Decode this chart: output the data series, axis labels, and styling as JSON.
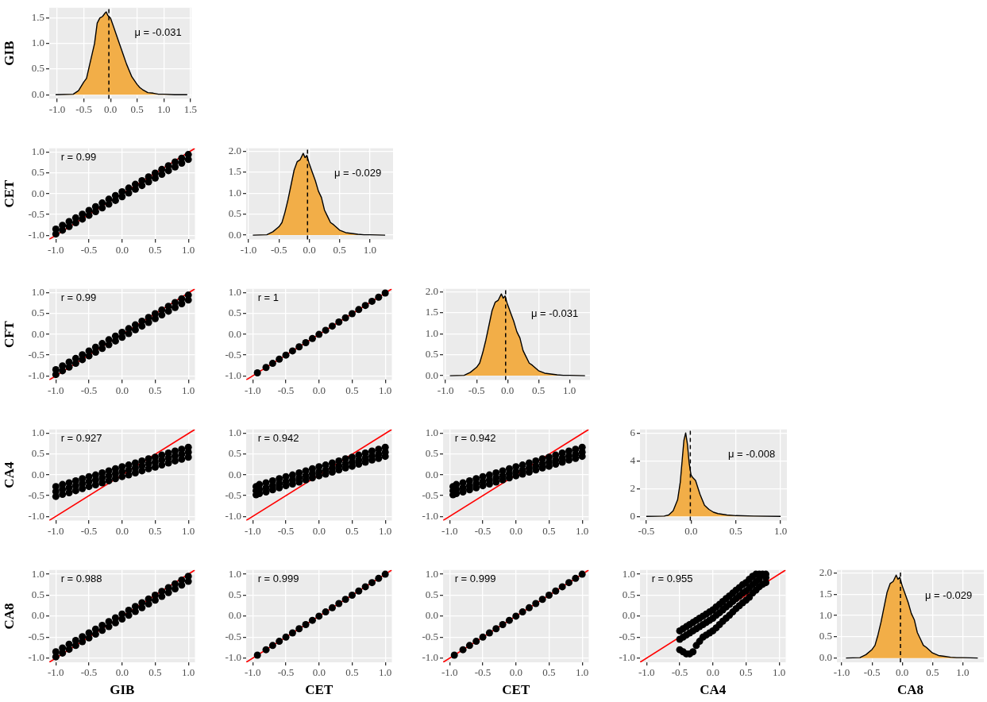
{
  "chart_data": [
    {
      "type": "area",
      "ylabel": "GIB",
      "grid": true,
      "xlim": [
        -1.15,
        1.52
      ],
      "xticks": [
        {
          "value": -1,
          "label": "-1.0"
        },
        -0.5,
        {
          "value": 0,
          "label": "0.0"
        },
        0.5,
        {
          "value": 1,
          "label": "1.0"
        },
        1.5
      ],
      "ylim": [
        -0.08,
        1.7
      ],
      "yticks": [
        {
          "value": 0,
          "label": "0.0"
        },
        0.5,
        {
          "value": 1,
          "label": "1.0"
        },
        1.5
      ],
      "ref_lines": [
        {
          "axis": "x",
          "value": -0.031,
          "line_style": "dashed"
        }
      ],
      "annotations": [
        "μ = -0.031"
      ],
      "series": [
        {
          "color": "#f2ae48",
          "x": [
            -1.03,
            -0.7,
            -0.6,
            -0.5,
            -0.45,
            -0.4,
            -0.3,
            -0.25,
            -0.2,
            -0.15,
            -0.1,
            -0.08,
            -0.05,
            0,
            0.05,
            0.1,
            0.15,
            0.2,
            0.25,
            0.3,
            0.4,
            0.5,
            0.55,
            0.6,
            0.7,
            0.8,
            0.9,
            1.0,
            1.2,
            1.44
          ],
          "values": [
            0,
            0.01,
            0.08,
            0.25,
            0.32,
            0.55,
            1.0,
            1.4,
            1.5,
            1.53,
            1.6,
            1.62,
            1.55,
            1.5,
            1.35,
            1.2,
            1.05,
            0.9,
            0.75,
            0.6,
            0.35,
            0.2,
            0.14,
            0.1,
            0.04,
            0.03,
            0.01,
            0.01,
            0,
            0
          ]
        }
      ]
    },
    {
      "type": "scatter",
      "ylabel": "CET",
      "grid": true,
      "marker": "circle",
      "xlim": [
        -1.1,
        1.1
      ],
      "xticks": [
        {
          "value": -1,
          "label": "-1.0"
        },
        -0.5,
        {
          "value": 0,
          "label": "0.0"
        },
        0.5,
        {
          "value": 1,
          "label": "1.0"
        }
      ],
      "ylim": [
        -1.1,
        1.1
      ],
      "yticks": [
        {
          "value": -1,
          "label": "-1.0"
        },
        -0.5,
        {
          "value": 0,
          "label": "0.0"
        },
        0.5,
        {
          "value": 1,
          "label": "1.0"
        }
      ],
      "annotations": [
        "r = 0.99"
      ],
      "series": [
        {
          "color": "#000000",
          "x": [
            -1,
            -0.9,
            -0.8,
            -0.7,
            -0.6,
            -0.5,
            -0.4,
            -0.3,
            -0.2,
            -0.1,
            0,
            0.1,
            0.2,
            0.3,
            0.4,
            0.5,
            0.6,
            0.7,
            0.8,
            0.9,
            1,
            -1,
            -0.9,
            -0.8,
            -0.7,
            -0.6,
            -0.5,
            -0.4,
            -0.3,
            -0.2,
            -0.1,
            0,
            0.1,
            0.2,
            0.3,
            0.4,
            0.5,
            0.6,
            0.7,
            0.8,
            0.9,
            1
          ],
          "values": [
            -0.85,
            -0.76,
            -0.67,
            -0.58,
            -0.49,
            -0.4,
            -0.31,
            -0.22,
            -0.13,
            -0.04,
            0.05,
            0.14,
            0.23,
            0.32,
            0.41,
            0.5,
            0.59,
            0.68,
            0.77,
            0.86,
            0.95,
            -0.97,
            -0.88,
            -0.79,
            -0.7,
            -0.61,
            -0.52,
            -0.43,
            -0.34,
            -0.25,
            -0.16,
            -0.07,
            0.02,
            0.11,
            0.2,
            0.29,
            0.38,
            0.47,
            0.56,
            0.65,
            0.74,
            0.83
          ]
        },
        {
          "type": "line",
          "color": "#ff0000",
          "marker": "none",
          "x": [
            -1.1,
            1.1
          ],
          "values": [
            -1.1,
            1.1
          ]
        }
      ]
    },
    {
      "type": "area",
      "grid": true,
      "xlim": [
        -1.04,
        1.38
      ],
      "xticks": [
        {
          "value": -1,
          "label": "-1.0"
        },
        -0.5,
        {
          "value": 0,
          "label": "0.0"
        },
        0.5,
        {
          "value": 1,
          "label": "1.0"
        }
      ],
      "ylim": [
        -0.1,
        2.07
      ],
      "yticks": [
        {
          "value": 0,
          "label": "0.0"
        },
        0.5,
        {
          "value": 1,
          "label": "1.0"
        },
        1.5,
        {
          "value": 2,
          "label": "2.0"
        }
      ],
      "ref_lines": [
        {
          "axis": "x",
          "value": -0.029,
          "line_style": "dashed"
        }
      ],
      "annotations": [
        "μ = -0.029"
      ],
      "series": [
        {
          "color": "#f2ae48",
          "x": [
            -0.93,
            -0.7,
            -0.6,
            -0.5,
            -0.45,
            -0.4,
            -0.35,
            -0.3,
            -0.25,
            -0.2,
            -0.15,
            -0.1,
            -0.07,
            -0.04,
            0,
            0.05,
            0.1,
            0.15,
            0.2,
            0.25,
            0.3,
            0.35,
            0.4,
            0.5,
            0.6,
            0.7,
            0.8,
            0.9,
            1.0,
            1.25
          ],
          "values": [
            0,
            0.01,
            0.08,
            0.2,
            0.3,
            0.55,
            0.85,
            1.2,
            1.55,
            1.75,
            1.8,
            1.95,
            1.85,
            1.9,
            1.7,
            1.5,
            1.3,
            1.05,
            0.9,
            0.6,
            0.45,
            0.3,
            0.25,
            0.12,
            0.06,
            0.04,
            0.02,
            0.01,
            0.01,
            0
          ]
        }
      ]
    },
    {
      "type": "scatter",
      "ylabel": "CFT",
      "grid": true,
      "marker": "circle",
      "xlim": [
        -1.1,
        1.1
      ],
      "xticks": [
        {
          "value": -1,
          "label": "-1.0"
        },
        -0.5,
        {
          "value": 0,
          "label": "0.0"
        },
        0.5,
        {
          "value": 1,
          "label": "1.0"
        }
      ],
      "ylim": [
        -1.1,
        1.1
      ],
      "yticks": [
        {
          "value": -1,
          "label": "-1.0"
        },
        -0.5,
        {
          "value": 0,
          "label": "0.0"
        },
        0.5,
        {
          "value": 1,
          "label": "1.0"
        }
      ],
      "annotations": [
        "r = 0.99"
      ],
      "series": [
        {
          "color": "#000000",
          "x": [
            -1,
            -0.9,
            -0.8,
            -0.7,
            -0.6,
            -0.5,
            -0.4,
            -0.3,
            -0.2,
            -0.1,
            0,
            0.1,
            0.2,
            0.3,
            0.4,
            0.5,
            0.6,
            0.7,
            0.8,
            0.9,
            1,
            -1,
            -0.9,
            -0.8,
            -0.7,
            -0.6,
            -0.5,
            -0.4,
            -0.3,
            -0.2,
            -0.1,
            0,
            0.1,
            0.2,
            0.3,
            0.4,
            0.5,
            0.6,
            0.7,
            0.8,
            0.9,
            1
          ],
          "values": [
            -0.85,
            -0.76,
            -0.67,
            -0.58,
            -0.49,
            -0.4,
            -0.31,
            -0.22,
            -0.13,
            -0.04,
            0.05,
            0.14,
            0.23,
            0.32,
            0.41,
            0.5,
            0.59,
            0.68,
            0.77,
            0.86,
            0.95,
            -0.97,
            -0.88,
            -0.79,
            -0.7,
            -0.61,
            -0.52,
            -0.43,
            -0.34,
            -0.25,
            -0.16,
            -0.07,
            0.02,
            0.11,
            0.2,
            0.29,
            0.38,
            0.47,
            0.56,
            0.65,
            0.74,
            0.83
          ]
        },
        {
          "type": "line",
          "color": "#ff0000",
          "marker": "none",
          "x": [
            -1.1,
            1.1
          ],
          "values": [
            -1.1,
            1.1
          ]
        }
      ]
    },
    {
      "type": "scatter",
      "grid": true,
      "marker": "circle",
      "xlim": [
        -1.1,
        1.1
      ],
      "xticks": [
        {
          "value": -1,
          "label": "-1.0"
        },
        -0.5,
        {
          "value": 0,
          "label": "0.0"
        },
        0.5,
        {
          "value": 1,
          "label": "1.0"
        }
      ],
      "ylim": [
        -1.1,
        1.1
      ],
      "yticks": [
        {
          "value": -1,
          "label": "-1.0"
        },
        -0.5,
        {
          "value": 0,
          "label": "0.0"
        },
        0.5,
        {
          "value": 1,
          "label": "1.0"
        }
      ],
      "annotations": [
        "r = 1"
      ],
      "series": [
        {
          "color": "#000000",
          "x": [
            -0.93,
            -0.8,
            -0.7,
            -0.6,
            -0.5,
            -0.4,
            -0.3,
            -0.2,
            -0.1,
            0,
            0.1,
            0.2,
            0.3,
            0.4,
            0.5,
            0.6,
            0.7,
            0.8,
            0.9,
            1
          ],
          "values": [
            -0.93,
            -0.8,
            -0.7,
            -0.6,
            -0.5,
            -0.4,
            -0.3,
            -0.2,
            -0.1,
            0,
            0.1,
            0.2,
            0.3,
            0.4,
            0.5,
            0.6,
            0.7,
            0.8,
            0.9,
            1
          ]
        },
        {
          "type": "line",
          "color": "#ff0000",
          "marker": "none",
          "x": [
            -1.1,
            1.1
          ],
          "values": [
            -1.1,
            1.1
          ]
        }
      ]
    },
    {
      "type": "area",
      "grid": true,
      "xlim": [
        -1.04,
        1.33
      ],
      "xticks": [
        {
          "value": -1,
          "label": "-1.0"
        },
        -0.5,
        {
          "value": 0,
          "label": "0.0"
        },
        0.5,
        {
          "value": 1,
          "label": "1.0"
        }
      ],
      "ylim": [
        -0.1,
        2.07
      ],
      "yticks": [
        {
          "value": 0,
          "label": "0.0"
        },
        0.5,
        {
          "value": 1,
          "label": "1.0"
        },
        1.5,
        {
          "value": 2,
          "label": "2.0"
        }
      ],
      "ref_lines": [
        {
          "axis": "x",
          "value": -0.031,
          "line_style": "dashed"
        }
      ],
      "annotations": [
        "μ = -0.031"
      ],
      "series": [
        {
          "color": "#f2ae48",
          "x": [
            -0.93,
            -0.7,
            -0.6,
            -0.5,
            -0.45,
            -0.4,
            -0.35,
            -0.3,
            -0.25,
            -0.2,
            -0.15,
            -0.1,
            -0.07,
            -0.04,
            0,
            0.05,
            0.1,
            0.15,
            0.2,
            0.25,
            0.3,
            0.35,
            0.4,
            0.5,
            0.6,
            0.7,
            0.8,
            0.9,
            1.0,
            1.25
          ],
          "values": [
            0,
            0.01,
            0.08,
            0.2,
            0.3,
            0.55,
            0.85,
            1.2,
            1.55,
            1.75,
            1.8,
            1.95,
            1.85,
            1.9,
            1.7,
            1.5,
            1.3,
            1.05,
            0.9,
            0.6,
            0.45,
            0.3,
            0.25,
            0.12,
            0.06,
            0.04,
            0.02,
            0.01,
            0.01,
            0
          ]
        }
      ]
    },
    {
      "type": "scatter",
      "ylabel": "CA4",
      "grid": true,
      "marker": "circle",
      "xlim": [
        -1.1,
        1.1
      ],
      "xticks": [
        {
          "value": -1,
          "label": "-1.0"
        },
        -0.5,
        {
          "value": 0,
          "label": "0.0"
        },
        0.5,
        {
          "value": 1,
          "label": "1.0"
        }
      ],
      "ylim": [
        -1.1,
        1.1
      ],
      "yticks": [
        {
          "value": -1,
          "label": "-1.0"
        },
        -0.5,
        {
          "value": 0,
          "label": "0.0"
        },
        0.5,
        {
          "value": 1,
          "label": "1.0"
        }
      ],
      "annotations": [
        "r = 0.927"
      ],
      "series": [
        {
          "color": "#000000",
          "x": [
            -1,
            -0.9,
            -0.8,
            -0.7,
            -0.6,
            -0.5,
            -0.4,
            -0.3,
            -0.2,
            -0.1,
            0,
            0.1,
            0.2,
            0.3,
            0.4,
            0.5,
            0.6,
            0.7,
            0.8,
            0.9,
            1,
            -1,
            -0.9,
            -0.8,
            -0.7,
            -0.6,
            -0.5,
            -0.4,
            -0.3,
            -0.2,
            -0.1,
            0,
            0.1,
            0.2,
            0.3,
            0.4,
            0.5,
            0.6,
            0.7,
            0.8,
            0.9,
            1,
            -1,
            -0.9,
            -0.8,
            -0.7,
            -0.6,
            -0.5,
            -0.4,
            -0.3,
            -0.2,
            -0.1,
            0,
            0.1,
            0.2,
            0.3,
            0.4,
            0.5,
            0.6,
            0.7,
            0.8,
            0.9,
            1
          ],
          "values": [
            -0.4,
            -0.35,
            -0.31,
            -0.26,
            -0.21,
            -0.16,
            -0.12,
            -0.07,
            -0.02,
            0.03,
            0.08,
            0.12,
            0.17,
            0.22,
            0.27,
            0.31,
            0.36,
            0.41,
            0.46,
            0.5,
            0.55,
            -0.28,
            -0.23,
            -0.19,
            -0.14,
            -0.09,
            -0.04,
            0,
            0.05,
            0.1,
            0.15,
            0.2,
            0.24,
            0.29,
            0.34,
            0.39,
            0.43,
            0.48,
            0.53,
            0.58,
            0.62,
            0.67,
            -0.52,
            -0.47,
            -0.43,
            -0.38,
            -0.33,
            -0.28,
            -0.24,
            -0.19,
            -0.14,
            -0.09,
            -0.04,
            0,
            0.05,
            0.1,
            0.15,
            0.19,
            0.24,
            0.29,
            0.34,
            0.38,
            0.43
          ]
        },
        {
          "type": "line",
          "color": "#ff0000",
          "marker": "none",
          "x": [
            -1.1,
            1.1
          ],
          "values": [
            -1.1,
            1.1
          ]
        }
      ]
    },
    {
      "type": "scatter",
      "grid": true,
      "marker": "circle",
      "xlim": [
        -1.1,
        1.1
      ],
      "xticks": [
        {
          "value": -1,
          "label": "-1.0"
        },
        -0.5,
        {
          "value": 0,
          "label": "0.0"
        },
        0.5,
        {
          "value": 1,
          "label": "1.0"
        }
      ],
      "ylim": [
        -1.1,
        1.1
      ],
      "yticks": [
        {
          "value": -1,
          "label": "-1.0"
        },
        -0.5,
        {
          "value": 0,
          "label": "0.0"
        },
        0.5,
        {
          "value": 1,
          "label": "1.0"
        }
      ],
      "annotations": [
        "r = 0.942"
      ],
      "series": [
        {
          "color": "#000000",
          "x": [
            -0.95,
            -0.9,
            -0.8,
            -0.7,
            -0.6,
            -0.5,
            -0.4,
            -0.3,
            -0.2,
            -0.1,
            0,
            0.1,
            0.2,
            0.3,
            0.4,
            0.5,
            0.6,
            0.7,
            0.8,
            0.9,
            1,
            -0.95,
            -0.9,
            -0.8,
            -0.7,
            -0.6,
            -0.5,
            -0.4,
            -0.3,
            -0.2,
            -0.1,
            0,
            0.1,
            0.2,
            0.3,
            0.4,
            0.5,
            0.6,
            0.7,
            0.8,
            0.9,
            1,
            -0.95,
            -0.9,
            -0.8,
            -0.7,
            -0.6,
            -0.5,
            -0.4,
            -0.3,
            -0.2,
            -0.1,
            0,
            0.1,
            0.2,
            0.3,
            0.4,
            0.5,
            0.6,
            0.7,
            0.8,
            0.9,
            1
          ],
          "values": [
            -0.38,
            -0.35,
            -0.31,
            -0.26,
            -0.21,
            -0.16,
            -0.12,
            -0.07,
            -0.02,
            0.03,
            0.08,
            0.12,
            0.17,
            0.22,
            0.27,
            0.31,
            0.36,
            0.41,
            0.46,
            0.5,
            0.55,
            -0.28,
            -0.23,
            -0.19,
            -0.14,
            -0.09,
            -0.04,
            0,
            0.05,
            0.1,
            0.15,
            0.2,
            0.24,
            0.29,
            0.34,
            0.39,
            0.43,
            0.48,
            0.53,
            0.58,
            0.62,
            0.67,
            -0.48,
            -0.45,
            -0.41,
            -0.36,
            -0.31,
            -0.26,
            -0.22,
            -0.17,
            -0.12,
            -0.07,
            -0.02,
            0.02,
            0.07,
            0.12,
            0.17,
            0.21,
            0.26,
            0.31,
            0.36,
            0.4,
            0.45
          ]
        },
        {
          "type": "line",
          "color": "#ff0000",
          "marker": "none",
          "x": [
            -1.1,
            1.1
          ],
          "values": [
            -1.1,
            1.1
          ]
        }
      ]
    },
    {
      "type": "scatter",
      "grid": true,
      "marker": "circle",
      "xlim": [
        -1.1,
        1.1
      ],
      "xticks": [
        {
          "value": -1,
          "label": "-1.0"
        },
        -0.5,
        {
          "value": 0,
          "label": "0.0"
        },
        0.5,
        {
          "value": 1,
          "label": "1.0"
        }
      ],
      "ylim": [
        -1.1,
        1.1
      ],
      "yticks": [
        {
          "value": -1,
          "label": "-1.0"
        },
        -0.5,
        {
          "value": 0,
          "label": "0.0"
        },
        0.5,
        {
          "value": 1,
          "label": "1.0"
        }
      ],
      "annotations": [
        "r = 0.942"
      ],
      "series": [
        {
          "color": "#000000",
          "x": [
            -0.95,
            -0.9,
            -0.8,
            -0.7,
            -0.6,
            -0.5,
            -0.4,
            -0.3,
            -0.2,
            -0.1,
            0,
            0.1,
            0.2,
            0.3,
            0.4,
            0.5,
            0.6,
            0.7,
            0.8,
            0.9,
            1,
            -0.95,
            -0.9,
            -0.8,
            -0.7,
            -0.6,
            -0.5,
            -0.4,
            -0.3,
            -0.2,
            -0.1,
            0,
            0.1,
            0.2,
            0.3,
            0.4,
            0.5,
            0.6,
            0.7,
            0.8,
            0.9,
            1,
            -0.95,
            -0.9,
            -0.8,
            -0.7,
            -0.6,
            -0.5,
            -0.4,
            -0.3,
            -0.2,
            -0.1,
            0,
            0.1,
            0.2,
            0.3,
            0.4,
            0.5,
            0.6,
            0.7,
            0.8,
            0.9,
            1
          ],
          "values": [
            -0.38,
            -0.35,
            -0.31,
            -0.26,
            -0.21,
            -0.16,
            -0.12,
            -0.07,
            -0.02,
            0.03,
            0.08,
            0.12,
            0.17,
            0.22,
            0.27,
            0.31,
            0.36,
            0.41,
            0.46,
            0.5,
            0.55,
            -0.28,
            -0.23,
            -0.19,
            -0.14,
            -0.09,
            -0.04,
            0,
            0.05,
            0.1,
            0.15,
            0.2,
            0.24,
            0.29,
            0.34,
            0.39,
            0.43,
            0.48,
            0.53,
            0.58,
            0.62,
            0.67,
            -0.48,
            -0.45,
            -0.41,
            -0.36,
            -0.31,
            -0.26,
            -0.22,
            -0.17,
            -0.12,
            -0.07,
            -0.02,
            0.02,
            0.07,
            0.12,
            0.17,
            0.21,
            0.26,
            0.31,
            0.36,
            0.4,
            0.45
          ]
        },
        {
          "type": "line",
          "color": "#ff0000",
          "marker": "none",
          "x": [
            -1.1,
            1.1
          ],
          "values": [
            -1.1,
            1.1
          ]
        }
      ]
    },
    {
      "type": "area",
      "grid": true,
      "xlim": [
        -0.57,
        1.07
      ],
      "xticks": [
        -0.5,
        {
          "value": 0,
          "label": "0.0"
        },
        0.5,
        {
          "value": 1,
          "label": "1.0"
        }
      ],
      "ylim": [
        -0.3,
        6.3
      ],
      "yticks": [
        0,
        2,
        4,
        6
      ],
      "ref_lines": [
        {
          "axis": "x",
          "value": -0.008,
          "line_style": "dashed"
        }
      ],
      "annotations": [
        "μ = -0.008"
      ],
      "series": [
        {
          "color": "#f2ae48",
          "x": [
            -0.5,
            -0.3,
            -0.25,
            -0.2,
            -0.15,
            -0.12,
            -0.1,
            -0.08,
            -0.06,
            -0.04,
            -0.02,
            0,
            0.02,
            0.05,
            0.08,
            0.1,
            0.15,
            0.2,
            0.25,
            0.3,
            0.4,
            0.5,
            0.7,
            1.0
          ],
          "values": [
            0,
            0.02,
            0.1,
            0.4,
            1.2,
            2.5,
            4.0,
            5.5,
            6.05,
            5.2,
            3.8,
            3.0,
            2.8,
            2.6,
            2.0,
            1.6,
            0.8,
            0.5,
            0.3,
            0.2,
            0.1,
            0.05,
            0.02,
            0
          ]
        }
      ]
    },
    {
      "type": "scatter",
      "ylabel": "CA8",
      "xlabel": "GIB",
      "grid": true,
      "marker": "circle",
      "xlim": [
        -1.1,
        1.1
      ],
      "xticks": [
        {
          "value": -1,
          "label": "-1.0"
        },
        -0.5,
        {
          "value": 0,
          "label": "0.0"
        },
        0.5,
        {
          "value": 1,
          "label": "1.0"
        }
      ],
      "ylim": [
        -1.1,
        1.1
      ],
      "yticks": [
        {
          "value": -1,
          "label": "-1.0"
        },
        -0.5,
        {
          "value": 0,
          "label": "0.0"
        },
        0.5,
        {
          "value": 1,
          "label": "1.0"
        }
      ],
      "annotations": [
        "r = 0.988"
      ],
      "series": [
        {
          "color": "#000000",
          "x": [
            -1,
            -0.9,
            -0.8,
            -0.7,
            -0.6,
            -0.5,
            -0.4,
            -0.3,
            -0.2,
            -0.1,
            0,
            0.1,
            0.2,
            0.3,
            0.4,
            0.5,
            0.6,
            0.7,
            0.8,
            0.9,
            1,
            -1,
            -0.9,
            -0.8,
            -0.7,
            -0.6,
            -0.5,
            -0.4,
            -0.3,
            -0.2,
            -0.1,
            0,
            0.1,
            0.2,
            0.3,
            0.4,
            0.5,
            0.6,
            0.7,
            0.8,
            0.9,
            1
          ],
          "values": [
            -0.85,
            -0.76,
            -0.67,
            -0.58,
            -0.49,
            -0.4,
            -0.31,
            -0.22,
            -0.13,
            -0.04,
            0.05,
            0.14,
            0.23,
            0.32,
            0.41,
            0.5,
            0.59,
            0.68,
            0.77,
            0.86,
            0.95,
            -0.97,
            -0.88,
            -0.79,
            -0.7,
            -0.61,
            -0.52,
            -0.43,
            -0.34,
            -0.25,
            -0.16,
            -0.07,
            0.02,
            0.11,
            0.2,
            0.29,
            0.38,
            0.47,
            0.56,
            0.65,
            0.74,
            0.83
          ]
        },
        {
          "type": "line",
          "color": "#ff0000",
          "marker": "none",
          "x": [
            -1.1,
            1.1
          ],
          "values": [
            -1.1,
            1.1
          ]
        }
      ]
    },
    {
      "type": "scatter",
      "xlabel": "CET",
      "grid": true,
      "marker": "circle",
      "xlim": [
        -1.1,
        1.1
      ],
      "xticks": [
        {
          "value": -1,
          "label": "-1.0"
        },
        -0.5,
        {
          "value": 0,
          "label": "0.0"
        },
        0.5,
        {
          "value": 1,
          "label": "1.0"
        }
      ],
      "ylim": [
        -1.1,
        1.1
      ],
      "yticks": [
        {
          "value": -1,
          "label": "-1.0"
        },
        -0.5,
        {
          "value": 0,
          "label": "0.0"
        },
        0.5,
        {
          "value": 1,
          "label": "1.0"
        }
      ],
      "annotations": [
        "r = 0.999"
      ],
      "series": [
        {
          "color": "#000000",
          "x": [
            -0.93,
            -0.8,
            -0.7,
            -0.6,
            -0.5,
            -0.4,
            -0.3,
            -0.2,
            -0.1,
            0,
            0.1,
            0.2,
            0.3,
            0.4,
            0.5,
            0.6,
            0.7,
            0.8,
            0.9,
            1
          ],
          "values": [
            -0.93,
            -0.8,
            -0.7,
            -0.6,
            -0.5,
            -0.4,
            -0.3,
            -0.2,
            -0.1,
            0,
            0.1,
            0.2,
            0.3,
            0.4,
            0.5,
            0.6,
            0.7,
            0.8,
            0.9,
            1
          ]
        },
        {
          "type": "line",
          "color": "#ff0000",
          "marker": "none",
          "x": [
            -1.1,
            1.1
          ],
          "values": [
            -1.1,
            1.1
          ]
        }
      ]
    },
    {
      "type": "scatter",
      "xlabel": "CET",
      "grid": true,
      "marker": "circle",
      "xlim": [
        -1.1,
        1.1
      ],
      "xticks": [
        {
          "value": -1,
          "label": "-1.0"
        },
        -0.5,
        {
          "value": 0,
          "label": "0.0"
        },
        0.5,
        {
          "value": 1,
          "label": "1.0"
        }
      ],
      "ylim": [
        -1.1,
        1.1
      ],
      "yticks": [
        {
          "value": -1,
          "label": "-1.0"
        },
        -0.5,
        {
          "value": 0,
          "label": "0.0"
        },
        0.5,
        {
          "value": 1,
          "label": "1.0"
        }
      ],
      "annotations": [
        "r = 0.999"
      ],
      "series": [
        {
          "color": "#000000",
          "x": [
            -0.93,
            -0.8,
            -0.7,
            -0.6,
            -0.5,
            -0.4,
            -0.3,
            -0.2,
            -0.1,
            0,
            0.1,
            0.2,
            0.3,
            0.4,
            0.5,
            0.6,
            0.7,
            0.8,
            0.9,
            1
          ],
          "values": [
            -0.93,
            -0.8,
            -0.7,
            -0.6,
            -0.5,
            -0.4,
            -0.3,
            -0.2,
            -0.1,
            0,
            0.1,
            0.2,
            0.3,
            0.4,
            0.5,
            0.6,
            0.7,
            0.8,
            0.9,
            1
          ]
        },
        {
          "type": "line",
          "color": "#ff0000",
          "marker": "none",
          "x": [
            -1.1,
            1.1
          ],
          "values": [
            -1.1,
            1.1
          ]
        }
      ]
    },
    {
      "type": "scatter",
      "xlabel": "CA4",
      "grid": true,
      "marker": "circle",
      "xlim": [
        -1.1,
        1.1
      ],
      "xticks": [
        {
          "value": -1,
          "label": "-1.0"
        },
        -0.5,
        {
          "value": 0,
          "label": "0.0"
        },
        0.5,
        {
          "value": 1,
          "label": "1.0"
        }
      ],
      "ylim": [
        -1.1,
        1.1
      ],
      "yticks": [
        {
          "value": -1,
          "label": "-1.0"
        },
        -0.5,
        {
          "value": 0,
          "label": "0.0"
        },
        0.5,
        {
          "value": 1,
          "label": "1.0"
        }
      ],
      "annotations": [
        "r = 0.955"
      ],
      "series": [
        {
          "color": "#000000",
          "x": [
            -0.5,
            -0.45,
            -0.4,
            -0.35,
            -0.3,
            -0.25,
            -0.2,
            -0.15,
            -0.1,
            -0.05,
            0,
            0.05,
            0.1,
            0.15,
            0.2,
            0.25,
            0.3,
            0.35,
            0.4,
            0.45,
            0.5,
            0.55,
            0.6,
            0.65,
            0.7,
            0.8,
            -0.5,
            -0.45,
            -0.4,
            -0.35,
            -0.3,
            -0.25,
            -0.2,
            -0.15,
            -0.1,
            -0.05,
            0,
            0.05,
            0.1,
            0.15,
            0.2,
            0.25,
            0.3,
            0.35,
            0.4,
            0.45,
            0.5,
            0.55,
            0.6,
            0.65,
            0.7,
            0.75,
            0.8,
            -0.5,
            -0.45,
            -0.4,
            -0.35,
            -0.3,
            -0.25,
            -0.2,
            -0.15,
            -0.1,
            -0.05,
            0,
            0.05,
            0.1,
            0.15,
            0.2,
            0.25,
            0.3,
            0.35,
            0.4,
            0.45,
            0.5,
            0.55,
            0.6,
            0.65,
            0.7,
            0.75,
            0.8
          ],
          "values": [
            -0.55,
            -0.5,
            -0.45,
            -0.4,
            -0.35,
            -0.3,
            -0.25,
            -0.2,
            -0.15,
            -0.1,
            -0.05,
            0.02,
            0.08,
            0.15,
            0.22,
            0.28,
            0.35,
            0.42,
            0.48,
            0.55,
            0.6,
            0.68,
            0.75,
            0.82,
            0.88,
            0.92,
            -0.35,
            -0.3,
            -0.25,
            -0.2,
            -0.15,
            -0.1,
            -0.05,
            0,
            0.05,
            0.1,
            0.15,
            0.22,
            0.28,
            0.35,
            0.42,
            0.48,
            0.55,
            0.62,
            0.68,
            0.75,
            0.8,
            0.88,
            0.95,
            1.0,
            1.0,
            1.0,
            1.0,
            -0.8,
            -0.85,
            -0.9,
            -0.9,
            -0.85,
            -0.7,
            -0.6,
            -0.5,
            -0.45,
            -0.4,
            -0.35,
            -0.28,
            -0.2,
            -0.12,
            -0.05,
            0.02,
            0.1,
            0.18,
            0.25,
            0.32,
            0.38,
            0.45,
            0.55,
            0.62,
            0.7,
            0.76,
            0.8
          ]
        },
        {
          "type": "line",
          "color": "#ff0000",
          "marker": "none",
          "x": [
            -1.1,
            1.1
          ],
          "values": [
            -1.1,
            1.1
          ]
        }
      ]
    },
    {
      "type": "area",
      "xlabel": "CA8",
      "grid": true,
      "xlim": [
        -1.08,
        1.35
      ],
      "xticks": [
        {
          "value": -1,
          "label": "-1.0"
        },
        -0.5,
        {
          "value": 0,
          "label": "0.0"
        },
        0.5,
        {
          "value": 1,
          "label": "1.0"
        }
      ],
      "ylim": [
        -0.1,
        2.07
      ],
      "yticks": [
        {
          "value": 0,
          "label": "0.0"
        },
        0.5,
        {
          "value": 1,
          "label": "1.0"
        },
        1.5,
        {
          "value": 2,
          "label": "2.0"
        }
      ],
      "ref_lines": [
        {
          "axis": "x",
          "value": -0.029,
          "line_style": "dashed"
        }
      ],
      "annotations": [
        "μ = -0.029"
      ],
      "series": [
        {
          "color": "#f2ae48",
          "x": [
            -0.93,
            -0.7,
            -0.6,
            -0.5,
            -0.45,
            -0.4,
            -0.35,
            -0.3,
            -0.25,
            -0.2,
            -0.15,
            -0.1,
            -0.07,
            -0.04,
            0,
            0.05,
            0.1,
            0.15,
            0.2,
            0.25,
            0.3,
            0.35,
            0.4,
            0.5,
            0.6,
            0.7,
            0.8,
            0.9,
            1.0,
            1.25
          ],
          "values": [
            0,
            0.01,
            0.08,
            0.2,
            0.3,
            0.55,
            0.85,
            1.2,
            1.55,
            1.75,
            1.8,
            1.95,
            1.85,
            1.9,
            1.7,
            1.5,
            1.3,
            1.05,
            0.9,
            0.6,
            0.45,
            0.3,
            0.25,
            0.12,
            0.06,
            0.04,
            0.02,
            0.01,
            0.01,
            0
          ]
        }
      ]
    }
  ]
}
